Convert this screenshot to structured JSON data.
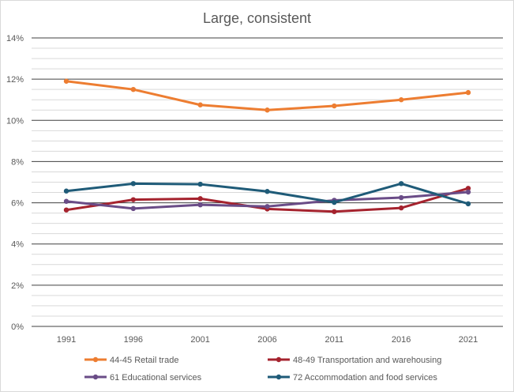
{
  "chart_data": {
    "type": "line",
    "title": "Large, consistent",
    "xlabel": "",
    "ylabel": "",
    "x": [
      "1991",
      "1996",
      "2001",
      "2006",
      "2011",
      "2016",
      "2021"
    ],
    "ylim": [
      0,
      14
    ],
    "y_tick_labels": [
      "0%",
      "2%",
      "4%",
      "6%",
      "8%",
      "10%",
      "12%",
      "14%"
    ],
    "grid": true,
    "legend_position": "bottom",
    "series": [
      {
        "name": "44-45 Retail trade",
        "color": "#ed7d31",
        "values": [
          11.9,
          11.5,
          10.75,
          10.5,
          10.7,
          11.0,
          11.35
        ]
      },
      {
        "name": "48-49 Transportation and warehousing",
        "color": "#a5232e",
        "values": [
          5.65,
          6.15,
          6.2,
          5.7,
          5.57,
          5.75,
          6.7
        ]
      },
      {
        "name": "61 Educational services",
        "color": "#6a4c87",
        "values": [
          6.07,
          5.72,
          5.9,
          5.82,
          6.12,
          6.25,
          6.52
        ]
      },
      {
        "name": "72 Accommodation and food services",
        "color": "#1f5b78",
        "values": [
          6.57,
          6.93,
          6.9,
          6.55,
          6.02,
          6.93,
          5.95
        ]
      }
    ]
  }
}
